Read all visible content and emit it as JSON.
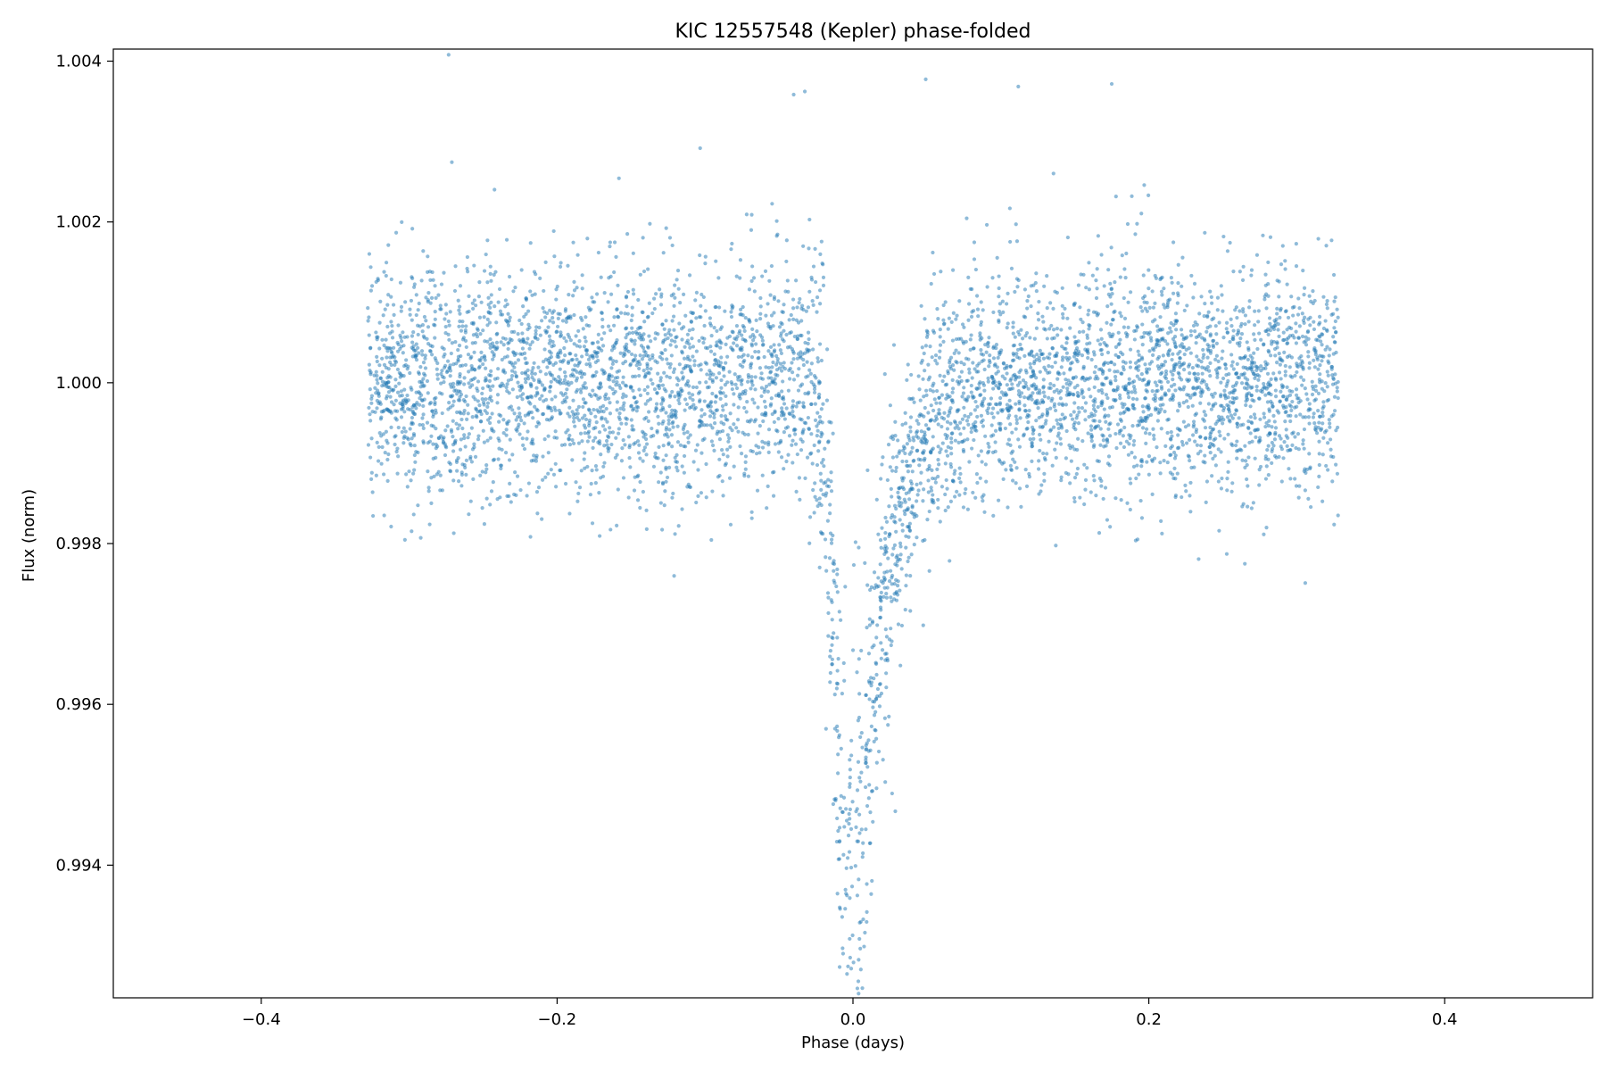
{
  "chart_data": {
    "type": "scatter",
    "title": "KIC 12557548 (Kepler) phase-folded",
    "xlabel": "Phase (days)",
    "ylabel": "Flux (norm)",
    "xlim": [
      -0.5,
      0.5
    ],
    "ylim": [
      0.99235,
      1.00415
    ],
    "x_ticks": [
      -0.4,
      -0.2,
      0.0,
      0.2,
      0.4
    ],
    "x_tick_labels": [
      "−0.4",
      "−0.2",
      "0.0",
      "0.2",
      "0.4"
    ],
    "y_ticks": [
      0.994,
      0.996,
      0.998,
      1.0,
      1.002,
      1.004
    ],
    "y_tick_labels": [
      "0.994",
      "0.996",
      "0.998",
      "1.000",
      "1.002",
      "1.004"
    ],
    "grid": false,
    "legend": "none",
    "point_color": "#1f77b4",
    "point_alpha": 0.5,
    "data_description": "Phase-folded normalized flux: ~6000 points spanning phase -0.33 to 0.33 days, baseline ~1.0000 with scatter sigma ~0.0007, asymmetric transit dip centered near phase 0.0 reaching ~0.9925.",
    "series": [
      {
        "x_range": [
          -0.328,
          0.328
        ],
        "baseline": 1.0,
        "scatter_sigma": 0.0007,
        "dip_center": 0.0,
        "dip_min": 0.9925,
        "representative_points": [
          [
            -0.33,
            1.0002
          ],
          [
            -0.3,
            0.9998
          ],
          [
            -0.25,
            1.0003
          ],
          [
            -0.2,
            0.9997
          ],
          [
            -0.15,
            1.0001
          ],
          [
            -0.1,
            1.0004
          ],
          [
            -0.06,
            1.0001
          ],
          [
            -0.03,
            0.9995
          ],
          [
            -0.02,
            0.9985
          ],
          [
            -0.01,
            0.9955
          ],
          [
            0.0,
            0.9932
          ],
          [
            0.01,
            0.9945
          ],
          [
            0.02,
            0.9978
          ],
          [
            0.03,
            0.9988
          ],
          [
            0.05,
            0.9994
          ],
          [
            0.08,
            0.9998
          ],
          [
            0.1,
            1.0001
          ],
          [
            0.15,
            0.9999
          ],
          [
            0.2,
            1.0001
          ],
          [
            0.25,
            1.0
          ],
          [
            0.3,
            0.9999
          ],
          [
            0.33,
            1.0001
          ]
        ]
      }
    ]
  }
}
